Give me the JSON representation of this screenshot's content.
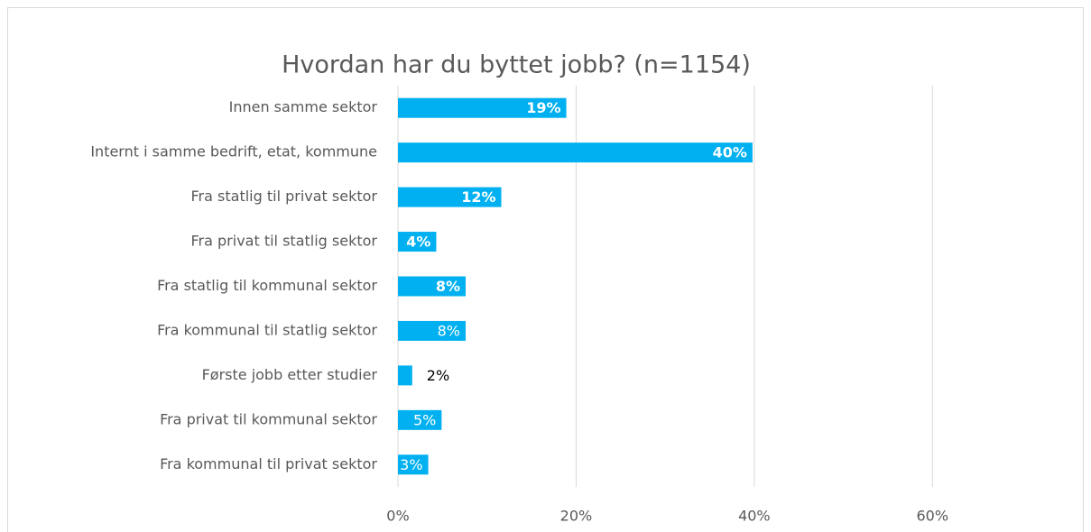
{
  "chart_data": {
    "type": "bar",
    "orientation": "horizontal",
    "title": "Hvordan har du byttet jobb? (n=1154)",
    "categories": [
      "Innen samme sektor",
      "Internt i samme bedrift, etat, kommune",
      "Fra statlig til privat sektor",
      "Fra privat til statlig sektor",
      "Fra statlig til kommunal sektor",
      "Fra kommunal til statlig sektor",
      "Første jobb etter studier",
      "Fra privat til kommunal sektor",
      "Fra kommunal til privat sektor"
    ],
    "values": [
      18.9,
      39.8,
      11.6,
      4.3,
      7.6,
      7.6,
      1.6,
      4.9,
      3.4
    ],
    "value_labels": [
      "19%",
      "40%",
      "12%",
      "4%",
      "8%",
      "8%",
      "2%",
      "5%",
      "3%"
    ],
    "color": "#00b0f0",
    "xlim": [
      0,
      70
    ],
    "xticks": [
      {
        "value": 0,
        "label": "0%"
      },
      {
        "value": 20,
        "label": "20%"
      },
      {
        "value": 40,
        "label": "40%"
      },
      {
        "value": 60,
        "label": "60%"
      }
    ],
    "grid": true
  }
}
